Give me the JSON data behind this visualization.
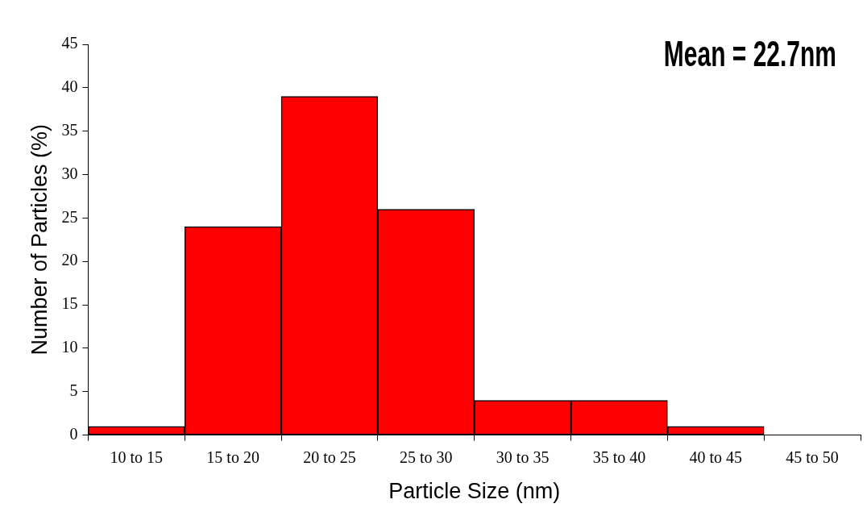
{
  "chart_data": {
    "type": "bar",
    "categories": [
      "10 to 15",
      "15 to 20",
      "20 to 25",
      "25 to 30",
      "30 to 35",
      "35 to 40",
      "40 to 45",
      "45 to 50"
    ],
    "values": [
      1,
      24,
      39,
      26,
      4,
      4,
      1,
      0
    ],
    "color": "#ff0000",
    "xlabel": "Particle Size (nm)",
    "ylabel": "Number of Particles (%)",
    "ylim": [
      0,
      45
    ],
    "yticks": [
      0,
      5,
      10,
      15,
      20,
      25,
      30,
      35,
      40,
      45
    ],
    "annotations": [
      "Mean = 22.7nm"
    ]
  }
}
